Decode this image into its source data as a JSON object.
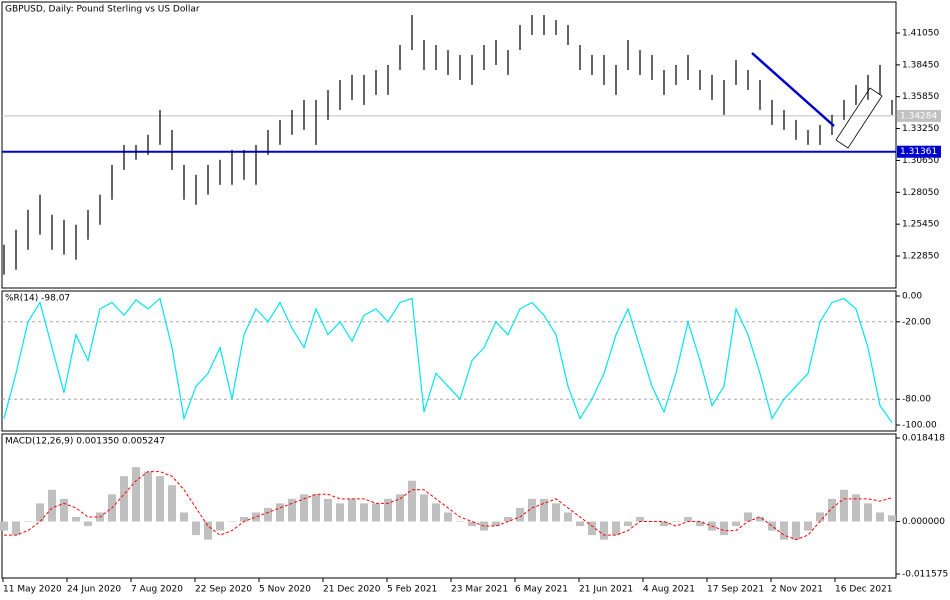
{
  "chart_data": [
    {
      "type": "ohlc",
      "title": "GBPUSD, Daily:  Pound Sterling vs US Dollar",
      "color": "#000000",
      "high": [
        1.2377,
        1.2499,
        1.2662,
        1.2785,
        1.2622,
        1.2581,
        1.254,
        1.2662,
        1.2785,
        1.3029,
        1.3192,
        1.3192,
        1.3274,
        1.3477,
        1.3314,
        1.3029,
        1.2948,
        1.3029,
        1.307,
        1.3151,
        1.3151,
        1.3192,
        1.3314,
        1.3396,
        1.3477,
        1.3559,
        1.3559,
        1.364,
        1.3722,
        1.3763,
        1.3763,
        1.3803,
        1.3844,
        1.4007,
        1.4252,
        1.4048,
        1.4007,
        1.3966,
        1.3926,
        1.3926,
        1.4007,
        1.4048,
        1.3966,
        1.417,
        1.4252,
        1.4252,
        1.4211,
        1.417,
        1.4007,
        1.3926,
        1.3926,
        1.3844,
        1.4048,
        1.3966,
        1.3926,
        1.3803,
        1.3844,
        1.3926,
        1.3803,
        1.3763,
        1.3722,
        1.3884,
        1.3803,
        1.3722,
        1.3559,
        1.3477,
        1.3396,
        1.3314,
        1.3355,
        1.3437,
        1.3559,
        1.3681,
        1.3763,
        1.3844,
        1.3559
      ],
      "low": [
        1.2133,
        1.2173,
        1.2336,
        1.2459,
        1.2336,
        1.2296,
        1.2255,
        1.2418,
        1.254,
        1.2744,
        1.2988,
        1.307,
        1.3111,
        1.3192,
        1.2988,
        1.2744,
        1.2703,
        1.2785,
        1.2866,
        1.2866,
        1.2907,
        1.2866,
        1.3111,
        1.3192,
        1.3274,
        1.3314,
        1.3192,
        1.3396,
        1.3477,
        1.3559,
        1.3518,
        1.36,
        1.36,
        1.3803,
        1.3966,
        1.3803,
        1.3803,
        1.3763,
        1.3722,
        1.3681,
        1.3803,
        1.3844,
        1.3763,
        1.3966,
        1.4089,
        1.4089,
        1.4089,
        1.4007,
        1.3803,
        1.3763,
        1.3681,
        1.36,
        1.3803,
        1.3763,
        1.3722,
        1.36,
        1.3681,
        1.3722,
        1.364,
        1.3559,
        1.3437,
        1.3681,
        1.364,
        1.3477,
        1.3355,
        1.3314,
        1.3233,
        1.3192,
        1.3192,
        1.3274,
        1.3396,
        1.3518,
        1.3559,
        1.36,
        1.3437
      ],
      "current_price": 1.34284,
      "level": 1.31361,
      "level_color": "#0000cd",
      "ylim": [
        1.2024,
        1.4358
      ],
      "yticks": [
        {
          "value": 1.4105,
          "label": "1.41050"
        },
        {
          "value": 1.3845,
          "label": "1.38450"
        },
        {
          "value": 1.3585,
          "label": "1.35850"
        },
        {
          "value": 1.3325,
          "label": "1.33250"
        },
        {
          "value": 1.3065,
          "label": "1.30650"
        },
        {
          "value": 1.2805,
          "label": "1.28050"
        },
        {
          "value": 1.2545,
          "label": "1.25450"
        },
        {
          "value": 1.2285,
          "label": "1.22850"
        }
      ]
    },
    {
      "type": "line",
      "title": "%R(14) -98.07",
      "color": "#00e5ee",
      "values": [
        -95,
        -60,
        -20,
        -5,
        -40,
        -75,
        -30,
        -50,
        -10,
        -5,
        -15,
        -3,
        -10,
        -2,
        -40,
        -95,
        -70,
        -60,
        -40,
        -80,
        -30,
        -10,
        -20,
        -5,
        -25,
        -40,
        -10,
        -30,
        -20,
        -35,
        -15,
        -10,
        -20,
        -5,
        -2,
        -90,
        -60,
        -70,
        -80,
        -50,
        -40,
        -20,
        -30,
        -10,
        -5,
        -15,
        -30,
        -70,
        -95,
        -80,
        -60,
        -30,
        -10,
        -40,
        -70,
        -90,
        -60,
        -20,
        -50,
        -85,
        -70,
        -10,
        -30,
        -60,
        -95,
        -80,
        -70,
        -60,
        -20,
        -5,
        -2,
        -10,
        -40,
        -85,
        -98.07
      ],
      "ylim": [
        -100,
        0
      ],
      "levels": [
        -20,
        -80
      ],
      "yticks": [
        {
          "value": 0,
          "label": "0.00"
        },
        {
          "value": -20,
          "label": "-20.00"
        },
        {
          "value": -80,
          "label": "-80.00"
        },
        {
          "value": -100,
          "label": "-100.00"
        }
      ]
    },
    {
      "type": "macd",
      "title": "MACD(12,26,9) 0.001350 0.005247",
      "series": [
        {
          "name": "MACD",
          "color": "#c0c0c0",
          "values": [
            -0.002,
            -0.003,
            0.0,
            0.004,
            0.007,
            0.005,
            0.001,
            -0.001,
            0.002,
            0.006,
            0.01,
            0.012,
            0.011,
            0.01,
            0.008,
            0.002,
            -0.003,
            -0.004,
            -0.002,
            0.0,
            0.001,
            0.002,
            0.003,
            0.004,
            0.005,
            0.006,
            0.006,
            0.005,
            0.004,
            0.005,
            0.004,
            0.004,
            0.005,
            0.006,
            0.009,
            0.006,
            0.004,
            0.002,
            0.0,
            -0.001,
            -0.002,
            -0.001,
            0.001,
            0.003,
            0.005,
            0.005,
            0.004,
            0.002,
            -0.001,
            -0.003,
            -0.004,
            -0.003,
            -0.001,
            0.001,
            0.0,
            -0.001,
            0.0,
            0.001,
            -0.001,
            -0.002,
            -0.003,
            -0.001,
            0.002,
            0.001,
            -0.002,
            -0.004,
            -0.004,
            -0.002,
            0.002,
            0.005,
            0.007,
            0.006,
            0.004,
            0.002,
            0.00135
          ]
        },
        {
          "name": "Signal",
          "color": "#ff0000",
          "values": [
            -0.003,
            -0.003,
            -0.002,
            0.0,
            0.003,
            0.004,
            0.003,
            0.001,
            0.001,
            0.003,
            0.006,
            0.009,
            0.011,
            0.011,
            0.01,
            0.007,
            0.003,
            -0.001,
            -0.003,
            -0.002,
            0.0,
            0.001,
            0.002,
            0.003,
            0.004,
            0.005,
            0.006,
            0.006,
            0.005,
            0.005,
            0.005,
            0.004,
            0.004,
            0.005,
            0.007,
            0.007,
            0.005,
            0.003,
            0.001,
            0.0,
            -0.001,
            -0.001,
            0.0,
            0.001,
            0.003,
            0.004,
            0.005,
            0.003,
            0.001,
            -0.001,
            -0.003,
            -0.003,
            -0.002,
            0.0,
            0.0,
            0.0,
            -0.001,
            0.0,
            0.0,
            -0.001,
            -0.002,
            -0.002,
            0.0,
            0.001,
            -0.001,
            -0.003,
            -0.004,
            -0.003,
            0.0,
            0.003,
            0.005,
            0.005,
            0.005,
            0.0045,
            0.005247
          ]
        }
      ],
      "ylim": [
        -0.011575,
        0.018418
      ],
      "yticks": [
        0.018418,
        {
          "value": 0,
          "label": "0.000000"
        },
        -0.011575
      ],
      "x_labels": [
        "11 May 2020",
        "24 Jun 2020",
        "7 Aug 2020",
        "22 Sep 2020",
        "5 Nov 2020",
        "21 Dec 2020",
        "5 Feb 2021",
        "23 Mar 2021",
        "6 May 2021",
        "21 Jun 2021",
        "4 Aug 2021",
        "17 Sep 2021",
        "2 Nov 2021",
        "16 Dec 2021"
      ]
    }
  ]
}
